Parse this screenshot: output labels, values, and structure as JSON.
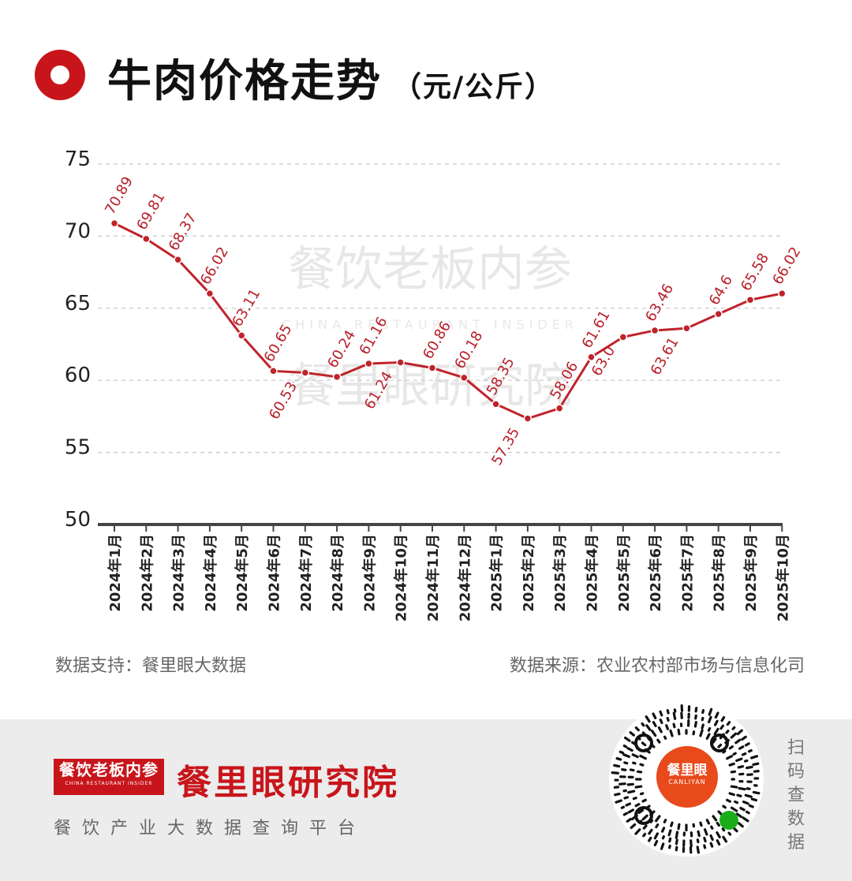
{
  "header": {
    "title": "牛肉价格走势",
    "unit": "（元/公斤）",
    "accent_color": "#c8151b"
  },
  "watermark": {
    "line1": "餐饮老板内参",
    "line1_en": "CHINA RESTAURANT INSIDER",
    "line2": "餐里眼研究院"
  },
  "chart_data": {
    "type": "line",
    "title": "牛肉价格走势",
    "ylabel": "",
    "xlabel": "",
    "ylim": [
      50,
      75
    ],
    "yticks": [
      50,
      55,
      60,
      65,
      70,
      75
    ],
    "grid": true,
    "line_color": "#c0232b",
    "categories": [
      "2024年1月",
      "2024年2月",
      "2024年3月",
      "2024年4月",
      "2024年5月",
      "2024年6月",
      "2024年7月",
      "2024年8月",
      "2024年9月",
      "2024年10月",
      "2024年11月",
      "2024年12月",
      "2025年1月",
      "2025年2月",
      "2025年3月",
      "2025年4月",
      "2025年5月",
      "2025年6月",
      "2025年7月",
      "2025年8月",
      "2025年9月",
      "2025年10月"
    ],
    "values": [
      70.89,
      69.81,
      68.37,
      66.02,
      63.11,
      60.65,
      60.53,
      60.24,
      61.16,
      61.24,
      60.86,
      60.18,
      58.35,
      57.35,
      58.06,
      61.61,
      63.0,
      63.46,
      63.61,
      64.6,
      65.58,
      66.02
    ],
    "labels": [
      "70.89",
      "69.81",
      "68.37",
      "66.02",
      "63.11",
      "60.65",
      "60.53",
      "60.24",
      "61.16",
      "61.24",
      "60.86",
      "60.18",
      "58.35",
      "57.35",
      "58.06",
      "61.61",
      "63.0",
      "63.46",
      "63.61",
      "64.6",
      "65.58",
      "66.02"
    ],
    "label_positions": [
      "above",
      "above",
      "above",
      "above",
      "above",
      "above",
      "below",
      "above",
      "above",
      "below",
      "above",
      "above",
      "above",
      "below",
      "above",
      "above",
      "below",
      "above",
      "below",
      "above",
      "above",
      "above"
    ]
  },
  "footer": {
    "support": "数据支持：餐里眼大数据",
    "source": "数据来源：农业农村部市场与信息化司"
  },
  "branding": {
    "badge_text": "餐饮老板内参",
    "badge_sub": "CHINA RESTAURANT INSIDER",
    "org_name": "餐里眼研究院",
    "platform": "餐饮产业大数据查询平台",
    "qr_brand": "餐里眼",
    "qr_brand_en": "CANLIYAN",
    "scan_label": "扫码查数据"
  }
}
